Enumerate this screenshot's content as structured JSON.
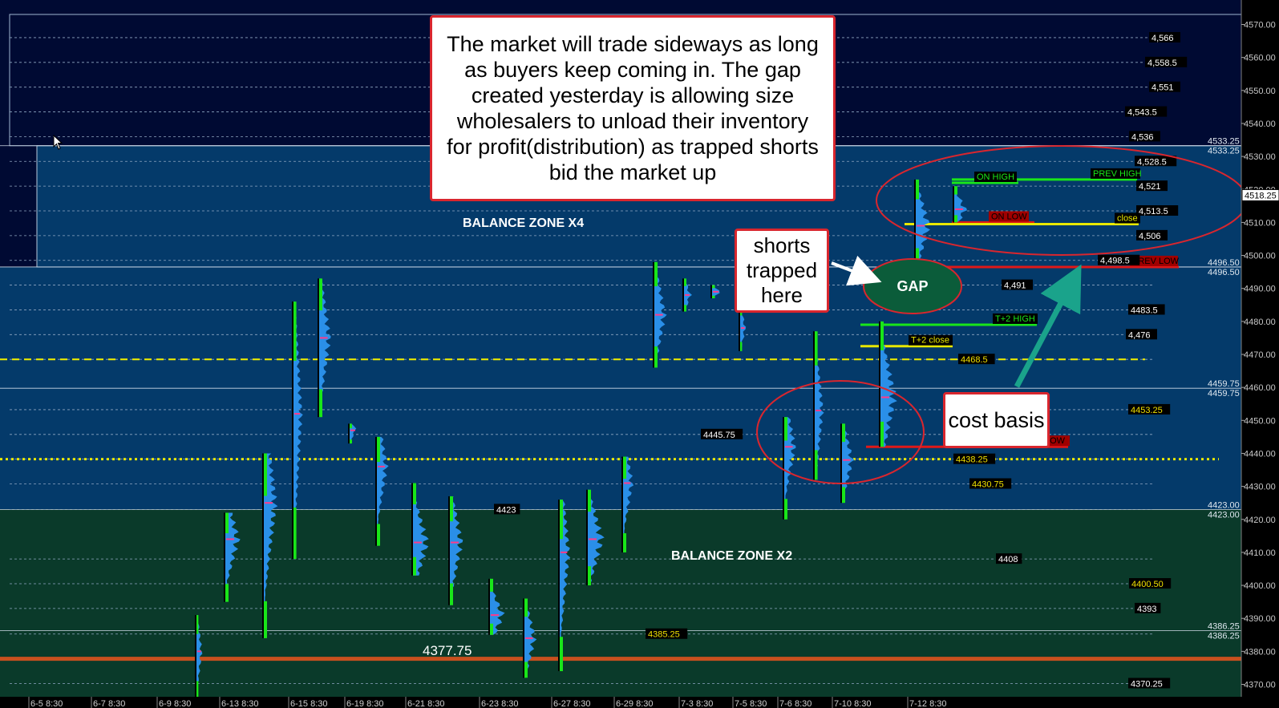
{
  "chart_data": {
    "type": "market-profile",
    "y_axis": {
      "min": 4366,
      "max": 4572,
      "ticks": [
        4370,
        4380,
        4390,
        4400,
        4410,
        4420,
        4430,
        4440,
        4450,
        4460,
        4470,
        4480,
        4490,
        4500,
        4510,
        4520,
        4530,
        4540,
        4550,
        4560,
        4570
      ],
      "tick_labels": [
        "4370.00",
        "4380.00",
        "4390.00",
        "4400.00",
        "4410.00",
        "4420.00",
        "4430.00",
        "4440.00",
        "4450.00",
        "4460.00",
        "4470.00",
        "4480.00",
        "4490.00",
        "4500.00",
        "4510.00",
        "4520.00",
        "4530.00",
        "4540.00",
        "4550.00",
        "4560.00",
        "4570.00"
      ]
    },
    "x_axis": {
      "session_labels": [
        "6-5 8:30",
        "6-7 8:30",
        "6-9 8:30",
        "6-13 8:30",
        "6-15 8:30",
        "6-19 8:30",
        "6-21 8:30",
        "6-23 8:30",
        "6-27 8:30",
        "6-29 8:30",
        "7-3 8:30",
        "7-5 8:30",
        "7-6 8:30",
        "7-10 8:30",
        "7-12 8:30"
      ]
    },
    "last_price": "4518.25",
    "zones": [
      {
        "name": "BALANCE ZONE X4",
        "low": 4496.5,
        "high": 4533.25
      },
      {
        "name": "BALANCE ZONE X2",
        "low": 4386.25,
        "high": 4423.0
      }
    ],
    "boundary_labels": [
      "4533.25",
      "4533.25",
      "4496.50",
      "4496.50",
      "4459.75",
      "4459.75",
      "4423.00",
      "4423.00",
      "4386.25",
      "4386.25"
    ],
    "level_labels": [
      {
        "text": "4,566",
        "value": 4566
      },
      {
        "text": "4,558.5",
        "value": 4558.5
      },
      {
        "text": "4,551",
        "value": 4551
      },
      {
        "text": "4,543.5",
        "value": 4543.5
      },
      {
        "text": "4,536",
        "value": 4536
      },
      {
        "text": "4,528.5",
        "value": 4528.5
      },
      {
        "text": "4,521",
        "value": 4521
      },
      {
        "text": "4,513.5",
        "value": 4513.5
      },
      {
        "text": "4,506",
        "value": 4506
      },
      {
        "text": "4,498.5",
        "value": 4498.5
      },
      {
        "text": "4,491",
        "value": 4491
      },
      {
        "text": "4483.5",
        "value": 4483.5
      },
      {
        "text": "4,476",
        "value": 4476
      },
      {
        "text": "4468.5",
        "value": 4468.5
      },
      {
        "text": "4453.25",
        "value": 4453.25
      },
      {
        "text": "4445.75",
        "value": 4445.75
      },
      {
        "text": "4438.25",
        "value": 4438.25
      },
      {
        "text": "4430.75",
        "value": 4430.75
      },
      {
        "text": "4423",
        "value": 4423
      },
      {
        "text": "4408",
        "value": 4408
      },
      {
        "text": "4400.50",
        "value": 4400.5
      },
      {
        "text": "4393",
        "value": 4393
      },
      {
        "text": "4385.25",
        "value": 4385.25
      },
      {
        "text": "4370.25",
        "value": 4370.25
      }
    ],
    "annotation_lines": [
      {
        "label": "PREV HIGH",
        "value": 4523,
        "color": "#19e619"
      },
      {
        "label": "ON HIGH",
        "value": 4522,
        "color": "#19e619"
      },
      {
        "label": "ON LOW",
        "value": 4510,
        "color": "#e01818"
      },
      {
        "label": "close",
        "value": 4509.5,
        "color": "#e8e800"
      },
      {
        "label": "PREV LOW",
        "value": 4496.5,
        "color": "#e01818"
      },
      {
        "label": "T+2 HIGH",
        "value": 4479,
        "color": "#19e619"
      },
      {
        "label": "T+2 close",
        "value": 4472.5,
        "color": "#e8e800"
      },
      {
        "label": "LOW",
        "value": 4442,
        "color": "#e01818"
      }
    ],
    "key_lines": [
      {
        "value": 4468.5,
        "color": "#e8e800",
        "style": "dashed"
      },
      {
        "value": 4438.25,
        "color": "#e8e800",
        "style": "dotted"
      },
      {
        "value": 4377.75,
        "color": "#c8501e",
        "style": "solid",
        "label": "4377.75"
      }
    ],
    "profiles": [
      {
        "session": "6-9 8:30",
        "low": 4366,
        "high": 4391,
        "poc": 4380
      },
      {
        "session": "6-13 8:30",
        "low": 4395,
        "high": 4422,
        "poc": 4414
      },
      {
        "session": "6-13 8:30",
        "low": 4384,
        "high": 4440,
        "poc": 4425
      },
      {
        "session": "6-15 8:30",
        "low": 4408,
        "high": 4486,
        "poc": 4452
      },
      {
        "session": "6-15 8:30",
        "low": 4451,
        "high": 4493,
        "poc": 4475
      },
      {
        "session": "6-19 8:30",
        "low": 4443,
        "high": 4449,
        "poc": 4447
      },
      {
        "session": "6-19 8:30",
        "low": 4412,
        "high": 4445,
        "poc": 4436
      },
      {
        "session": "6-21 8:30",
        "low": 4403,
        "high": 4431,
        "poc": 4413
      },
      {
        "session": "6-21 8:30",
        "low": 4394,
        "high": 4427,
        "poc": 4413
      },
      {
        "session": "6-23 8:30",
        "low": 4385,
        "high": 4402,
        "poc": 4391
      },
      {
        "session": "6-23 8:30",
        "low": 4372,
        "high": 4396,
        "poc": 4384
      },
      {
        "session": "6-27 8:30",
        "low": 4374,
        "high": 4426,
        "poc": 4410
      },
      {
        "session": "6-27 8:30",
        "low": 4400,
        "high": 4429,
        "poc": 4414
      },
      {
        "session": "6-29 8:30",
        "low": 4410,
        "high": 4439,
        "poc": 4431
      },
      {
        "session": "6-29 8:30",
        "low": 4466,
        "high": 4498,
        "poc": 4482
      },
      {
        "session": "7-3 8:30",
        "low": 4483,
        "high": 4493,
        "poc": 4488
      },
      {
        "session": "7-3 8:30",
        "low": 4487,
        "high": 4491,
        "poc": 4489
      },
      {
        "session": "7-5 8:30",
        "low": 4471,
        "high": 4485,
        "poc": 4478
      },
      {
        "session": "7-5 8:30",
        "low": 4420,
        "high": 4451,
        "poc": 4442
      },
      {
        "session": "7-6 8:30",
        "low": 4432,
        "high": 4477,
        "poc": 4453
      },
      {
        "session": "7-10 8:30",
        "low": 4425,
        "high": 4449,
        "poc": 4438
      },
      {
        "session": "7-10 8:30",
        "low": 4442,
        "high": 4480,
        "poc": 4457
      },
      {
        "session": "7-12 8:30",
        "low": 4497,
        "high": 4523,
        "poc": 4509
      },
      {
        "session": "7-12 8:30",
        "low": 4510,
        "high": 4521,
        "poc": 4514
      }
    ]
  },
  "annotations": {
    "main_callout": "The market will trade sideways as long as buyers keep coming in.  The gap created yesterday is allowing size wholesalers to unload their inventory for profit(distribution) as trapped shorts bid the market up",
    "shorts_callout": "shorts trapped here",
    "cost_callout": "cost basis",
    "gap_label": "GAP",
    "zone_x4_label": "BALANCE ZONE X4",
    "zone_x2_label": "BALANCE ZONE X2",
    "low_line_label": "4377.75"
  },
  "colors": {
    "zone_top": "#000a33",
    "zone_blue": "#043a6a",
    "zone_green": "#0a3a2a",
    "profile_blue": "#2a8fe8",
    "profile_green": "#19e619",
    "callout_border": "#d9262e",
    "gap_fill": "#0b5c3a",
    "arrow_teal": "#1aa38b"
  }
}
